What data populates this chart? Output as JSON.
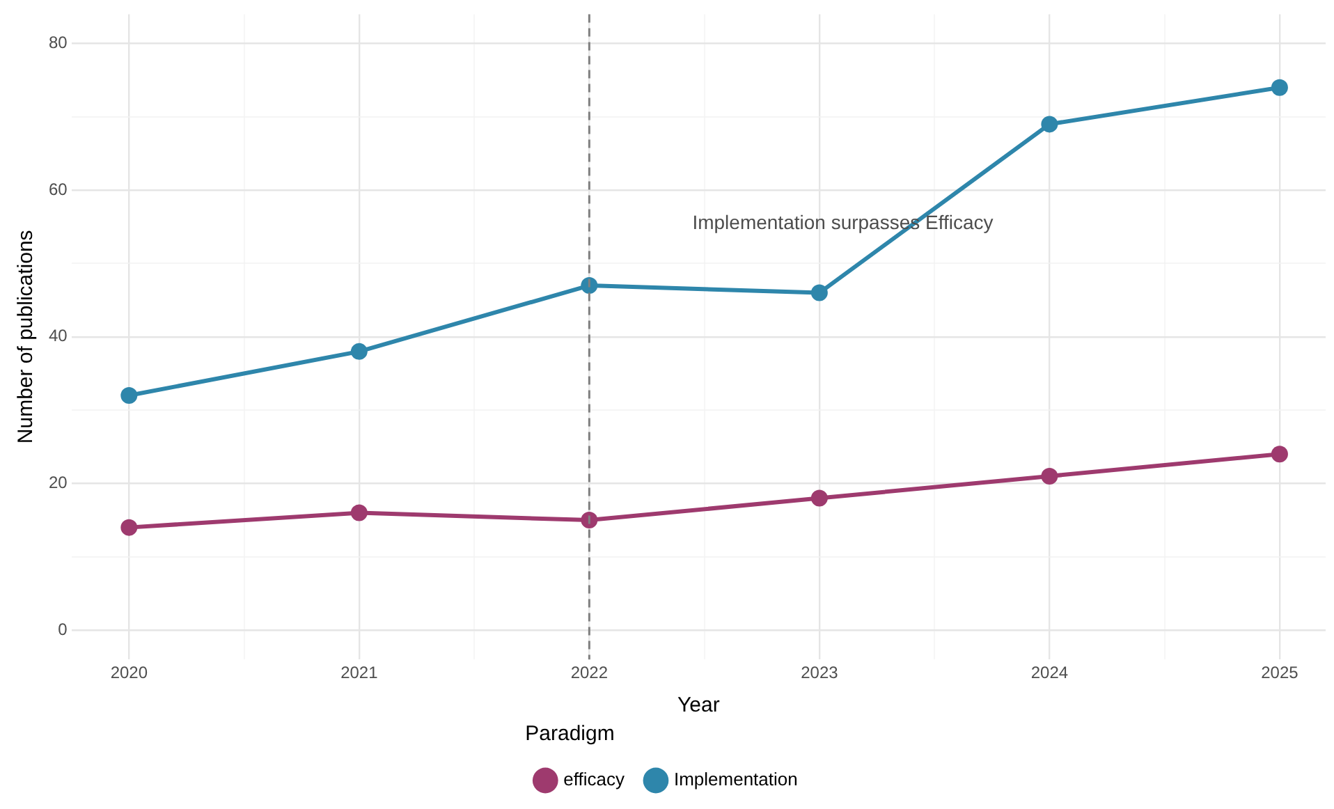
{
  "chart_data": {
    "type": "line",
    "xlabel": "Year",
    "ylabel": "Number of publications",
    "legend_title": "Paradigm",
    "legend": "bottom",
    "grid": true,
    "marker": "circle",
    "line_style": "solid",
    "x": [
      2020,
      2021,
      2022,
      2023,
      2024,
      2025
    ],
    "xlim": [
      2019.75,
      2025.2
    ],
    "xticks": [
      2020,
      {
        "value": 2020.5,
        "label": null
      },
      2021,
      {
        "value": 2021.5,
        "label": null
      },
      2022,
      {
        "value": 2022.5,
        "label": null
      },
      2023,
      {
        "value": 2023.5,
        "label": null
      },
      2024,
      {
        "value": 2024.5,
        "label": null
      },
      2025
    ],
    "ylim": [
      -4,
      84
    ],
    "yticks": [
      0,
      {
        "value": 10,
        "label": null
      },
      20,
      {
        "value": 30,
        "label": null
      },
      40,
      {
        "value": 50,
        "label": null
      },
      60,
      {
        "value": 70,
        "label": null
      },
      80
    ],
    "series": [
      {
        "name": "efficacy",
        "color": "#9e3a6e",
        "values": [
          14,
          16,
          15,
          18,
          21,
          24
        ]
      },
      {
        "name": "Implementation",
        "color": "#2e86ab",
        "values": [
          32,
          38,
          47,
          46,
          69,
          74
        ]
      }
    ],
    "ref_lines": [
      {
        "axis": "x",
        "value": 2022,
        "color": "#808080",
        "line_style": "dashed"
      }
    ],
    "annotations": [
      "Implementation surpasses Efficacy"
    ]
  }
}
